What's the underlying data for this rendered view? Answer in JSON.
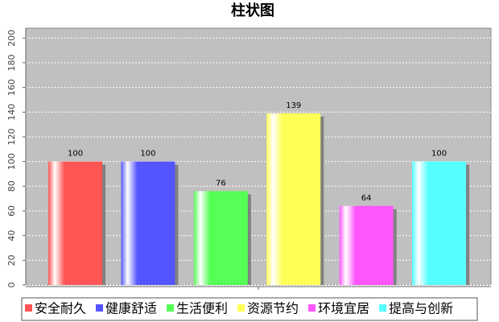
{
  "chart_data": {
    "type": "bar",
    "title": "柱状图",
    "categories": [
      null
    ],
    "series": [
      {
        "name": "安全耐久",
        "color": "#ff5555",
        "values": [
          100
        ]
      },
      {
        "name": "健康舒适",
        "color": "#5555ff",
        "values": [
          100
        ]
      },
      {
        "name": "生活便利",
        "color": "#55ff55",
        "values": [
          76
        ]
      },
      {
        "name": "资源节约",
        "color": "#ffff55",
        "values": [
          139
        ]
      },
      {
        "name": "环境宜居",
        "color": "#ff55ff",
        "values": [
          64
        ]
      },
      {
        "name": "提高与创新",
        "color": "#55ffff",
        "values": [
          100
        ]
      }
    ],
    "ylim": [
      0,
      208
    ],
    "yticks": [
      0,
      20,
      40,
      60,
      80,
      100,
      120,
      140,
      160,
      180,
      200
    ],
    "grid": true,
    "legend": "bottom"
  }
}
